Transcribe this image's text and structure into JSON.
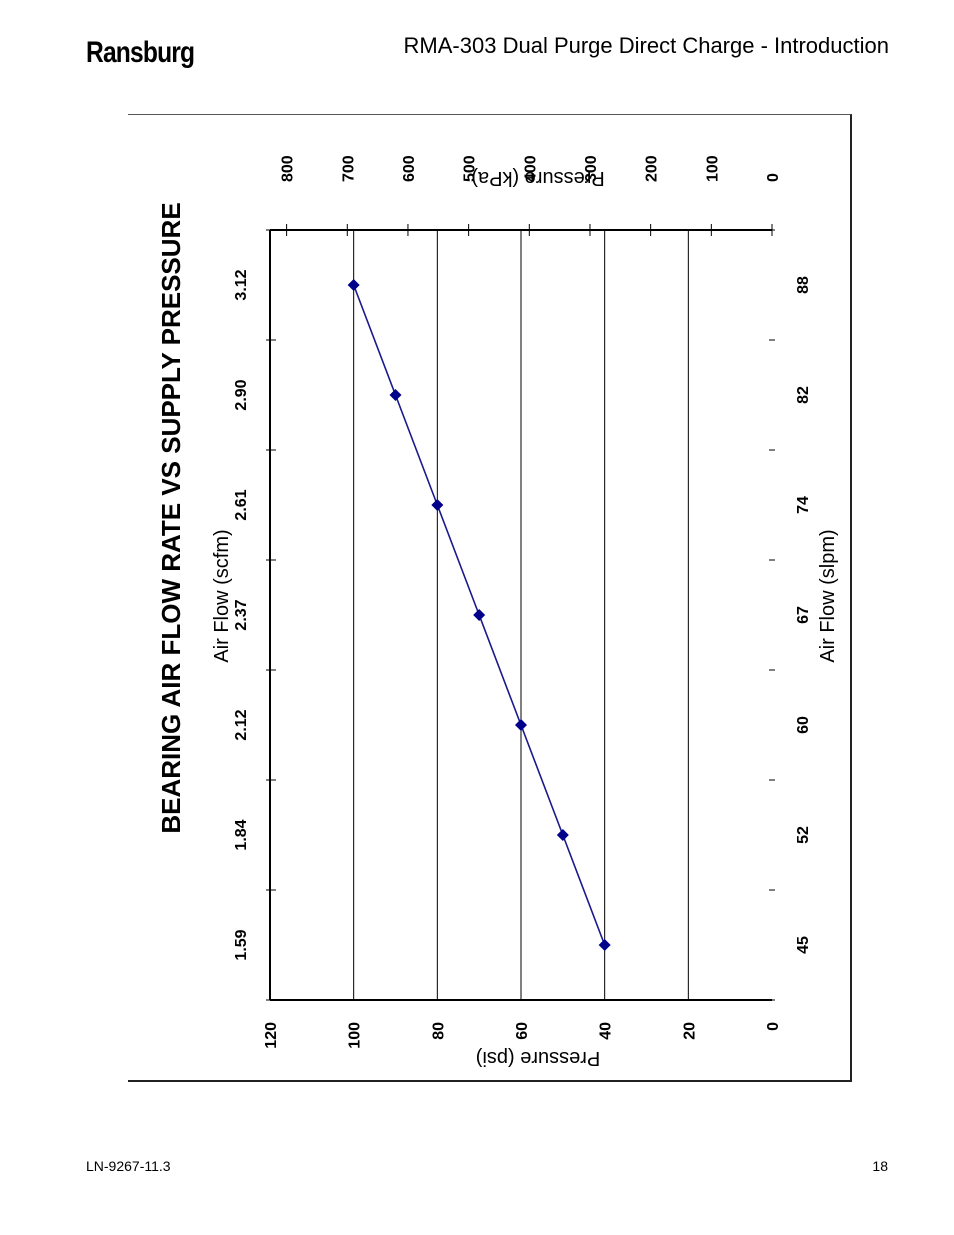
{
  "header": {
    "brand": "Ransburg",
    "title": "RMA-303 Dual Purge Direct Charge - Introduction"
  },
  "footer": {
    "doc_number": "LN-9267-11.3",
    "page_number": "18"
  },
  "chart_data": {
    "type": "line",
    "title": "BEARING AIR FLOW RATE VS SUPPLY PRESSURE",
    "x_scfm": {
      "label": "Air Flow (scfm)",
      "ticks": [
        "1.59",
        "1.84",
        "2.12",
        "2.37",
        "2.61",
        "2.90",
        "3.12"
      ]
    },
    "x_slpm": {
      "label": "Air Flow (slpm)",
      "ticks": [
        "45",
        "52",
        "60",
        "67",
        "74",
        "82",
        "88"
      ]
    },
    "y_psi": {
      "label": "Pressure (psi)",
      "ticks": [
        0,
        20,
        40,
        60,
        80,
        100,
        120
      ],
      "ylim": [
        0,
        120
      ]
    },
    "y_kpa": {
      "label": "Pressure (kPa)",
      "ticks": [
        0,
        100,
        200,
        300,
        400,
        500,
        600,
        700,
        800
      ]
    },
    "series": [
      {
        "x_index": [
          0,
          1,
          2,
          3,
          4,
          5,
          6
        ],
        "y": [
          40,
          50,
          60,
          70,
          80,
          90,
          100
        ]
      }
    ],
    "grid": true,
    "orientation": "rotated-90"
  }
}
